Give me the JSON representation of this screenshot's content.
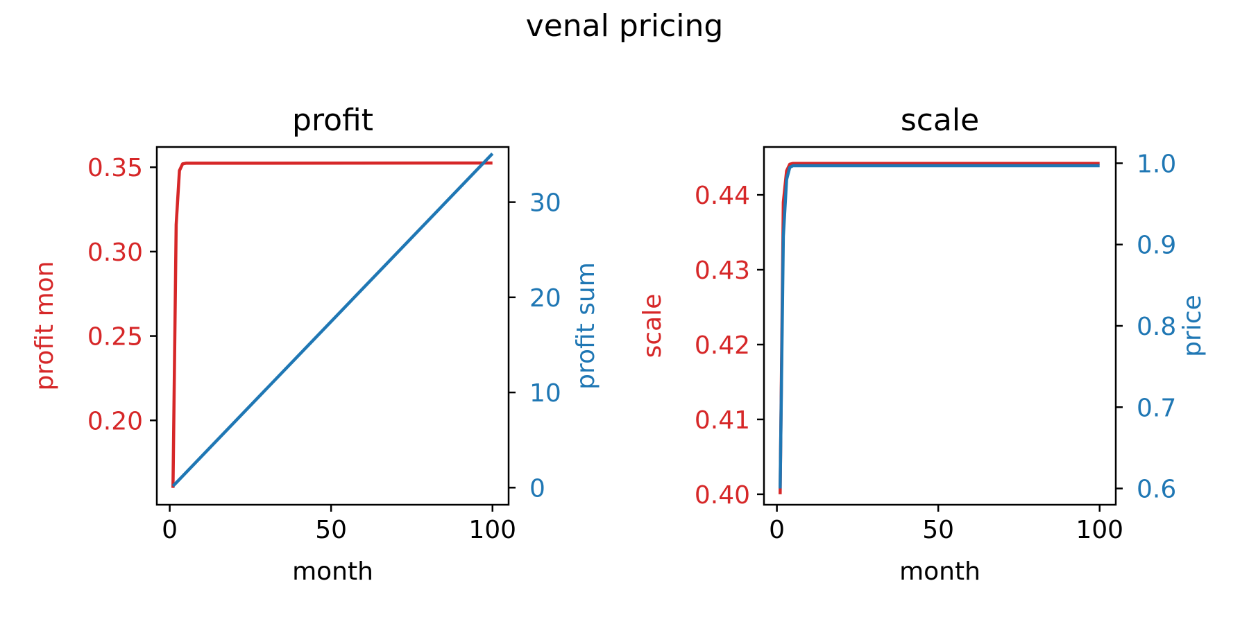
{
  "figure": {
    "suptitle": "venal pricing"
  },
  "colors": {
    "left_series": "#d62728",
    "right_series": "#1f77b4",
    "text": "#000000"
  },
  "chart_data": [
    {
      "type": "line",
      "title": "profit",
      "xlabel": "month",
      "xlim": [
        -4,
        105
      ],
      "xticks": [
        0,
        50,
        100
      ],
      "left_axis": {
        "label": "profit mon",
        "ylim": [
          0.15,
          0.362
        ],
        "ticks": [
          0.2,
          0.25,
          0.3,
          0.35
        ],
        "tick_labels": [
          "0.20",
          "0.25",
          "0.30",
          "0.35"
        ],
        "color": "#d62728"
      },
      "right_axis": {
        "label": "profit sum",
        "ylim": [
          -1.8,
          35.8
        ],
        "ticks": [
          0,
          10,
          20,
          30
        ],
        "tick_labels": [
          "0",
          "10",
          "20",
          "30"
        ],
        "color": "#1f77b4"
      },
      "series": [
        {
          "axis": "left",
          "color": "#d62728",
          "points": [
            [
              1,
              0.16
            ],
            [
              2,
              0.316
            ],
            [
              3,
              0.348
            ],
            [
              4,
              0.352
            ],
            [
              5,
              0.3524
            ],
            [
              100,
              0.3525
            ]
          ]
        },
        {
          "axis": "right",
          "color": "#1f77b4",
          "points": [
            [
              1,
              0.16
            ],
            [
              100,
              35.1
            ]
          ]
        }
      ]
    },
    {
      "type": "line",
      "title": "scale",
      "xlabel": "month",
      "xlim": [
        -4,
        105
      ],
      "xticks": [
        0,
        50,
        100
      ],
      "left_axis": {
        "label": "scale",
        "ylim": [
          0.3986,
          0.4464
        ],
        "ticks": [
          0.4,
          0.41,
          0.42,
          0.43,
          0.44
        ],
        "tick_labels": [
          "0.40",
          "0.41",
          "0.42",
          "0.43",
          "0.44"
        ],
        "color": "#d62728"
      },
      "right_axis": {
        "label": "price",
        "ylim": [
          0.58,
          1.02
        ],
        "ticks": [
          0.6,
          0.7,
          0.8,
          0.9,
          1.0
        ],
        "tick_labels": [
          "0.6",
          "0.7",
          "0.8",
          "0.9",
          "1.0"
        ],
        "color": "#1f77b4"
      },
      "series": [
        {
          "axis": "left",
          "color": "#d62728",
          "points": [
            [
              1,
              0.4
            ],
            [
              2,
              0.439
            ],
            [
              3,
              0.4432
            ],
            [
              4,
              0.4441
            ],
            [
              5,
              0.4442
            ],
            [
              100,
              0.4442
            ]
          ]
        },
        {
          "axis": "right",
          "color": "#1f77b4",
          "points": [
            [
              1,
              0.6
            ],
            [
              2,
              0.91
            ],
            [
              3,
              0.98
            ],
            [
              4,
              0.995
            ],
            [
              5,
              0.997
            ],
            [
              100,
              0.997
            ]
          ]
        }
      ]
    }
  ]
}
